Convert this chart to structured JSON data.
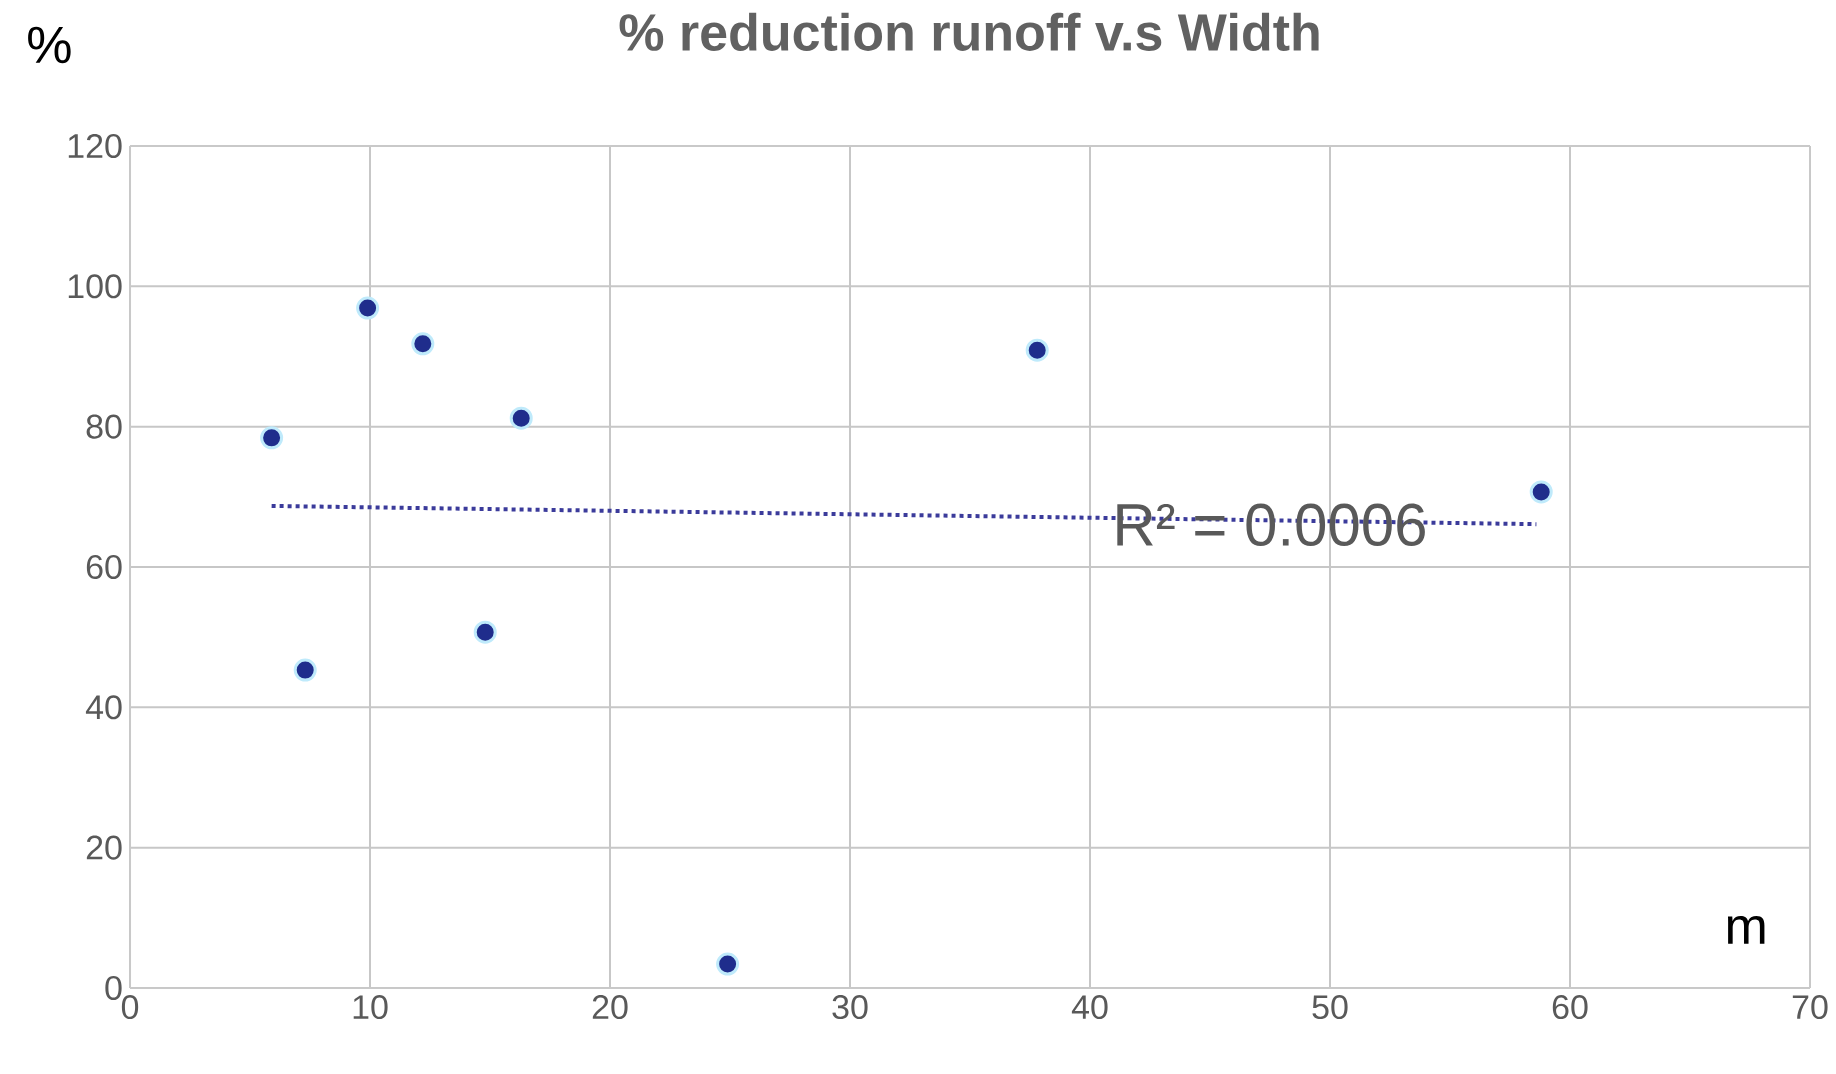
{
  "chart_data": {
    "type": "scatter",
    "title": "% reduction runoff v.s Width",
    "xlabel": "m",
    "ylabel": "%",
    "xlim": [
      0,
      70
    ],
    "ylim": [
      0,
      120
    ],
    "xticks": [
      0,
      10,
      20,
      30,
      40,
      50,
      60,
      70
    ],
    "yticks": [
      0,
      20,
      40,
      60,
      80,
      100,
      120
    ],
    "grid": true,
    "series": [
      {
        "color": "#1f2d8c",
        "marker": "circle",
        "x": [
          5.9,
          7.3,
          9.9,
          12.2,
          14.8,
          16.3,
          24.9,
          37.8,
          58.8
        ],
        "values": [
          78.4,
          45.3,
          96.9,
          91.8,
          50.7,
          81.2,
          3.4,
          90.9,
          70.7
        ]
      },
      {
        "type": "line",
        "color": "#3b3b9b",
        "line_style": "dotted",
        "x": [
          5.9,
          58.6
        ],
        "values": [
          68.7,
          66.1
        ]
      }
    ],
    "annotations": [
      {
        "text": "R² = 0.0006",
        "x": 47.5,
        "y": 66
      }
    ]
  }
}
